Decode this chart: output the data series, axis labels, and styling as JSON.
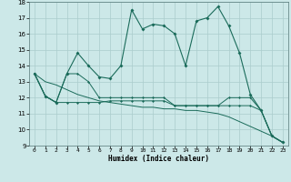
{
  "xlabel": "Humidex (Indice chaleur)",
  "bg_color": "#cce8e8",
  "grid_color": "#aacccc",
  "line_color": "#1a6b5a",
  "x_values": [
    0,
    1,
    2,
    3,
    4,
    5,
    6,
    7,
    8,
    9,
    10,
    11,
    12,
    13,
    14,
    15,
    16,
    17,
    18,
    19,
    20,
    21,
    22,
    23
  ],
  "series1": [
    13.5,
    12.1,
    11.7,
    13.5,
    14.8,
    14.0,
    13.3,
    13.2,
    14.0,
    17.5,
    16.3,
    16.6,
    16.5,
    16.0,
    14.0,
    16.8,
    17.0,
    17.7,
    16.5,
    14.8,
    12.2,
    11.2,
    9.6,
    9.2
  ],
  "series2": [
    13.5,
    12.1,
    11.7,
    13.5,
    13.5,
    13.0,
    12.0,
    12.0,
    12.0,
    12.0,
    12.0,
    12.0,
    12.0,
    11.5,
    11.5,
    11.5,
    11.5,
    11.5,
    12.0,
    12.0,
    12.0,
    11.2,
    9.6,
    9.2
  ],
  "series3": [
    13.5,
    12.1,
    11.7,
    11.7,
    11.7,
    11.7,
    11.7,
    11.8,
    11.8,
    11.8,
    11.8,
    11.8,
    11.8,
    11.5,
    11.5,
    11.5,
    11.5,
    11.5,
    11.5,
    11.5,
    11.5,
    11.2,
    9.6,
    9.2
  ],
  "series4": [
    13.5,
    13.0,
    12.8,
    12.5,
    12.2,
    12.0,
    11.8,
    11.7,
    11.6,
    11.5,
    11.4,
    11.4,
    11.3,
    11.3,
    11.2,
    11.2,
    11.1,
    11.0,
    10.8,
    10.5,
    10.2,
    9.9,
    9.6,
    9.2
  ],
  "ylim": [
    9,
    18
  ],
  "xlim_min": -0.5,
  "xlim_max": 23.5,
  "yticks": [
    9,
    10,
    11,
    12,
    13,
    14,
    15,
    16,
    17,
    18
  ],
  "xticks": [
    0,
    1,
    2,
    3,
    4,
    5,
    6,
    7,
    8,
    9,
    10,
    11,
    12,
    13,
    14,
    15,
    16,
    17,
    18,
    19,
    20,
    21,
    22,
    23
  ]
}
